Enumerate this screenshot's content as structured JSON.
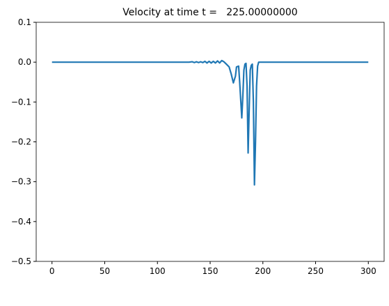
{
  "chart_data": {
    "type": "line",
    "title": "Velocity at time t =   225.00000000",
    "x": [
      0,
      130,
      133,
      135,
      137,
      139,
      141,
      143,
      145,
      147,
      149,
      151,
      153,
      155,
      157,
      159,
      161,
      163,
      165,
      168,
      170,
      172,
      174,
      175,
      177,
      178,
      180,
      181,
      182,
      183,
      184,
      185,
      186,
      187,
      188,
      189,
      190,
      191,
      192,
      193,
      194,
      195,
      196,
      300
    ],
    "series": [
      {
        "name": "velocity",
        "color": "#1f77b4",
        "values": [
          0,
          0,
          0.001,
          -0.001,
          0.001,
          -0.001,
          0.001,
          -0.001,
          0.002,
          -0.002,
          0.002,
          -0.002,
          0.002,
          -0.002,
          0.003,
          -0.002,
          0.004,
          0.001,
          -0.004,
          -0.012,
          -0.03,
          -0.052,
          -0.035,
          -0.012,
          -0.01,
          -0.05,
          -0.14,
          -0.085,
          -0.02,
          -0.005,
          -0.003,
          -0.06,
          -0.228,
          -0.12,
          -0.02,
          -0.008,
          -0.005,
          -0.1,
          -0.308,
          -0.2,
          -0.06,
          -0.01,
          0,
          0
        ]
      }
    ],
    "xlim": [
      -15,
      315
    ],
    "ylim": [
      -0.5,
      0.1
    ],
    "xticks": [
      0,
      50,
      100,
      150,
      200,
      250,
      300
    ],
    "yticks": [
      {
        "value": -0.5,
        "label": "−0.5"
      },
      {
        "value": -0.4,
        "label": "−0.4"
      },
      {
        "value": -0.3,
        "label": "−0.3"
      },
      {
        "value": -0.2,
        "label": "−0.2"
      },
      {
        "value": -0.1,
        "label": "−0.1"
      },
      {
        "value": 0,
        "label": "0.0"
      },
      0.1
    ]
  }
}
